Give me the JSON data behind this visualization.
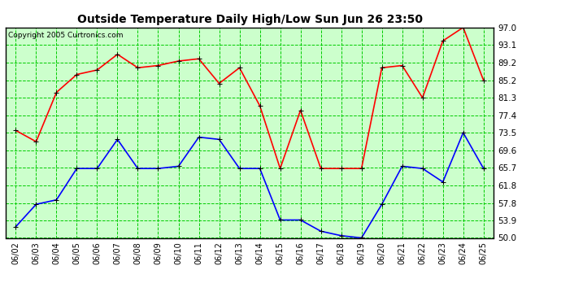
{
  "title": "Outside Temperature Daily High/Low Sun Jun 26 23:50",
  "copyright": "Copyright 2005 Curtronics.com",
  "dates": [
    "06/02",
    "06/03",
    "06/04",
    "06/05",
    "06/06",
    "06/07",
    "06/08",
    "06/09",
    "06/10",
    "06/11",
    "06/12",
    "06/13",
    "06/14",
    "06/15",
    "06/16",
    "06/17",
    "06/18",
    "06/19",
    "06/20",
    "06/21",
    "06/22",
    "06/23",
    "06/24",
    "06/25"
  ],
  "high": [
    74.0,
    71.5,
    82.5,
    86.5,
    87.5,
    91.0,
    88.0,
    88.5,
    89.5,
    90.0,
    84.5,
    88.0,
    79.5,
    65.5,
    78.5,
    65.5,
    65.5,
    65.5,
    88.0,
    88.5,
    81.3,
    94.0,
    97.0,
    85.2
  ],
  "low": [
    52.5,
    57.5,
    58.5,
    65.5,
    65.5,
    72.0,
    65.5,
    65.5,
    66.0,
    72.5,
    72.0,
    65.5,
    65.5,
    54.0,
    54.0,
    51.5,
    50.5,
    50.0,
    57.5,
    66.0,
    65.5,
    62.5,
    73.5,
    65.5
  ],
  "ylim": [
    50.0,
    97.0
  ],
  "yticks": [
    50.0,
    53.9,
    57.8,
    61.8,
    65.7,
    69.6,
    73.5,
    77.4,
    81.3,
    85.2,
    89.2,
    93.1,
    97.0
  ],
  "high_color": "#ff0000",
  "low_color": "#0000ff",
  "bg_color": "#ffffff",
  "plot_bg_color": "#ccffcc",
  "grid_color": "#00cc00",
  "title_color": "#000000",
  "marker": "+",
  "marker_size": 5,
  "line_width": 1.2
}
